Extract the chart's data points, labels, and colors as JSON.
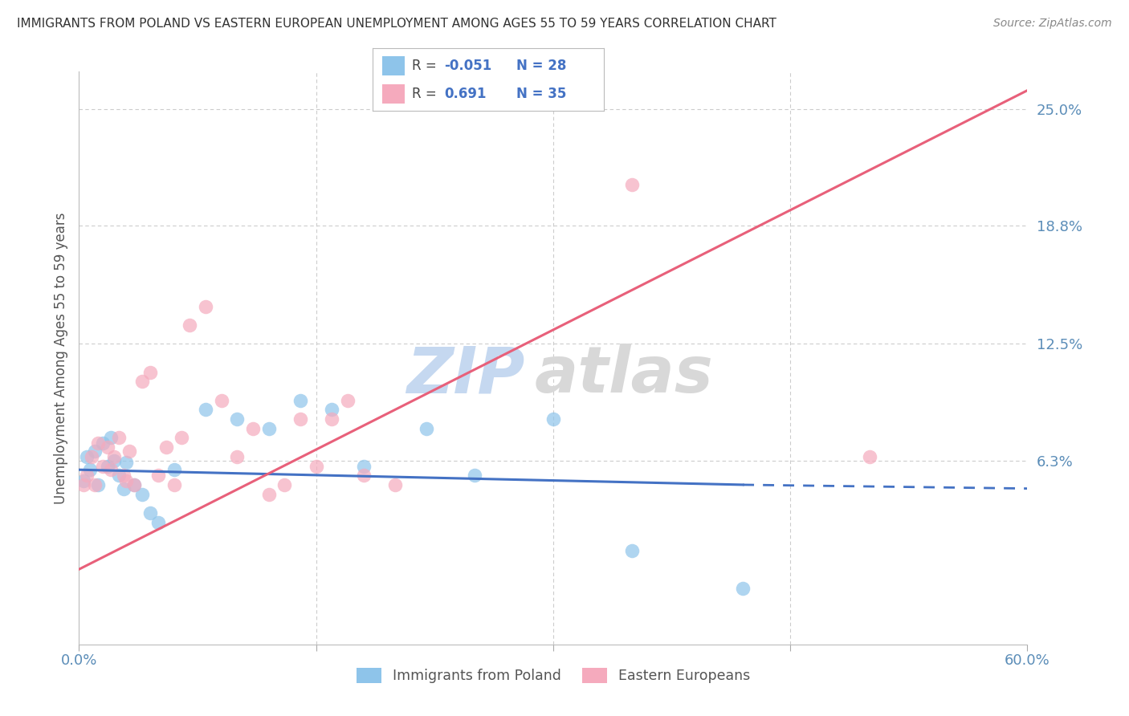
{
  "title": "IMMIGRANTS FROM POLAND VS EASTERN EUROPEAN UNEMPLOYMENT AMONG AGES 55 TO 59 YEARS CORRELATION CHART",
  "source": "Source: ZipAtlas.com",
  "ylabel": "Unemployment Among Ages 55 to 59 years",
  "xmin": 0.0,
  "xmax": 60.0,
  "ymin": -3.5,
  "ymax": 27.0,
  "yticks": [
    0.0,
    6.3,
    12.5,
    18.8,
    25.0
  ],
  "ytick_labels": [
    "",
    "6.3%",
    "12.5%",
    "18.8%",
    "25.0%"
  ],
  "blue_R": -0.051,
  "blue_N": 28,
  "pink_R": 0.691,
  "pink_N": 35,
  "blue_label": "Immigrants from Poland",
  "pink_label": "Eastern Europeans",
  "blue_color": "#8EC4EA",
  "pink_color": "#F5AABD",
  "blue_line_color": "#4472C4",
  "pink_line_color": "#E8607A",
  "watermark_zip": "ZIP",
  "watermark_atlas": "atlas",
  "watermark_zip_color": "#C5D8F0",
  "watermark_atlas_color": "#D8D8D8",
  "title_color": "#333333",
  "source_color": "#888888",
  "axis_label_color": "#555555",
  "tick_color": "#5B8DB8",
  "grid_color": "#CCCCCC",
  "legend_r_color": "#4472C4",
  "blue_x": [
    0.3,
    0.5,
    0.7,
    1.0,
    1.2,
    1.5,
    1.8,
    2.0,
    2.2,
    2.5,
    2.8,
    3.0,
    3.5,
    4.0,
    4.5,
    5.0,
    6.0,
    8.0,
    10.0,
    12.0,
    14.0,
    16.0,
    18.0,
    22.0,
    25.0,
    30.0,
    35.0,
    42.0
  ],
  "blue_y": [
    5.2,
    6.5,
    5.8,
    6.8,
    5.0,
    7.2,
    6.0,
    7.5,
    6.3,
    5.5,
    4.8,
    6.2,
    5.0,
    4.5,
    3.5,
    3.0,
    5.8,
    9.0,
    8.5,
    8.0,
    9.5,
    9.0,
    6.0,
    8.0,
    5.5,
    8.5,
    1.5,
    -0.5
  ],
  "pink_x": [
    0.3,
    0.5,
    0.8,
    1.0,
    1.2,
    1.5,
    1.8,
    2.0,
    2.2,
    2.5,
    2.8,
    3.0,
    3.2,
    3.5,
    4.0,
    4.5,
    5.0,
    5.5,
    6.0,
    6.5,
    7.0,
    8.0,
    9.0,
    10.0,
    11.0,
    12.0,
    13.0,
    14.0,
    15.0,
    16.0,
    17.0,
    18.0,
    20.0,
    35.0,
    50.0
  ],
  "pink_y": [
    5.0,
    5.5,
    6.5,
    5.0,
    7.2,
    6.0,
    7.0,
    5.8,
    6.5,
    7.5,
    5.5,
    5.2,
    6.8,
    5.0,
    10.5,
    11.0,
    5.5,
    7.0,
    5.0,
    7.5,
    13.5,
    14.5,
    9.5,
    6.5,
    8.0,
    4.5,
    5.0,
    8.5,
    6.0,
    8.5,
    9.5,
    5.5,
    5.0,
    21.0,
    6.5
  ],
  "blue_trend_x0": 0.0,
  "blue_trend_x1": 42.0,
  "blue_trend_y0": 5.8,
  "blue_trend_y1": 5.0,
  "blue_dash_x0": 42.0,
  "blue_dash_x1": 60.0,
  "blue_dash_y0": 5.0,
  "blue_dash_y1": 4.8,
  "pink_trend_x0": 0.0,
  "pink_trend_x1": 60.0,
  "pink_trend_y0": 0.5,
  "pink_trend_y1": 26.0
}
